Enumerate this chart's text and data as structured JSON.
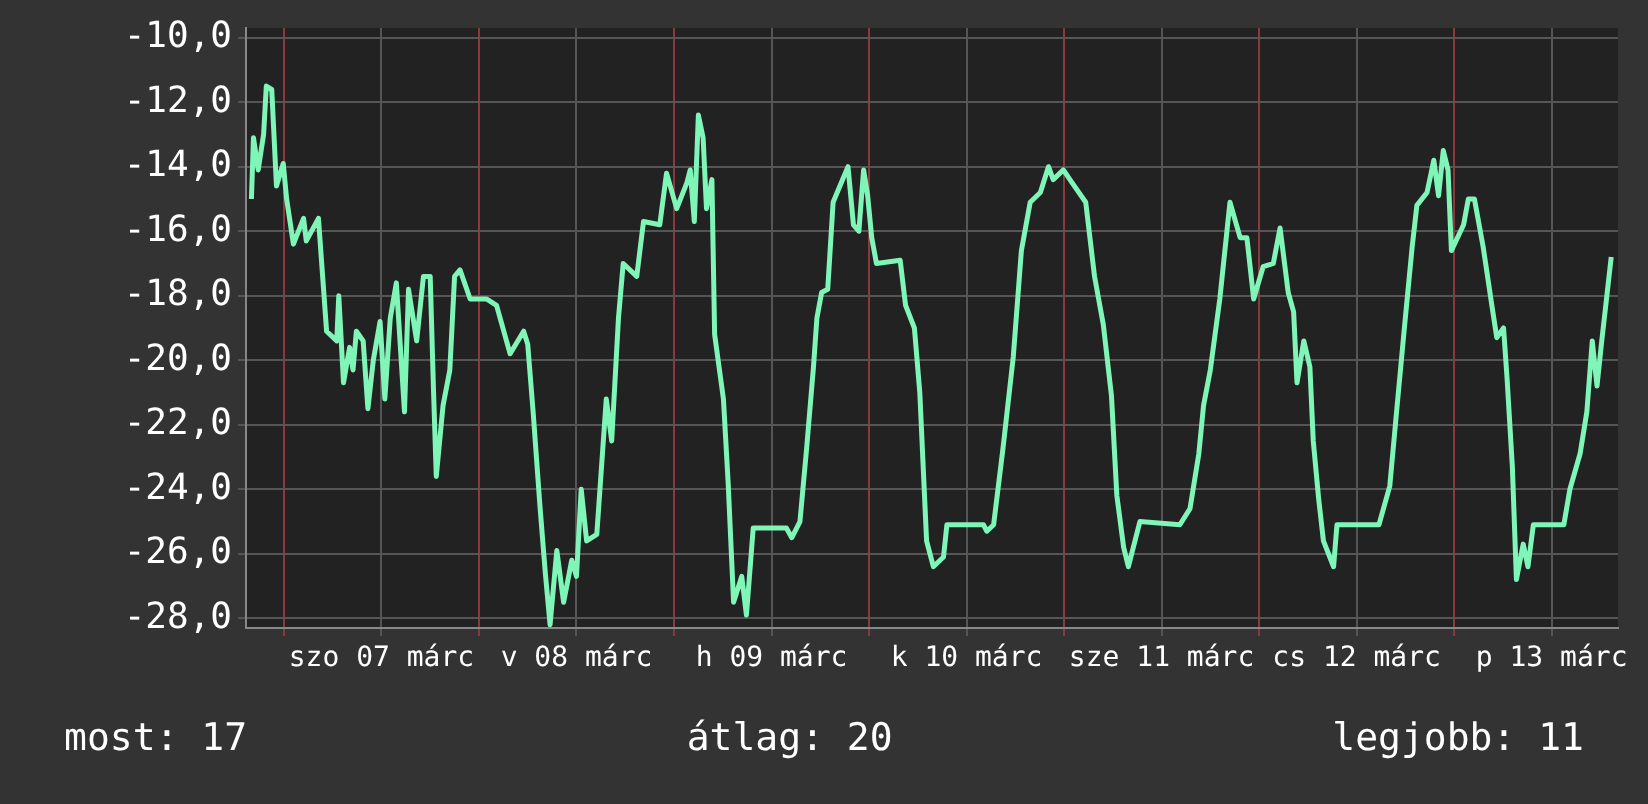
{
  "chart_data": {
    "type": "line",
    "xlim": [
      "--03-06T19:20",
      "--03-13T20:10"
    ],
    "ylim": [
      -28.3,
      -9.7
    ],
    "xticks": [
      {
        "value": "--03-07T00:00",
        "label": null
      },
      {
        "value": "--03-07T12:00",
        "label": "szo 07 márc"
      },
      {
        "value": "--03-08T00:00",
        "label": null
      },
      {
        "value": "--03-08T12:00",
        "label": "v 08 márc"
      },
      {
        "value": "--03-09T00:00",
        "label": null
      },
      {
        "value": "--03-09T12:00",
        "label": "h 09 márc"
      },
      {
        "value": "--03-10T00:00",
        "label": null
      },
      {
        "value": "--03-10T12:00",
        "label": "k 10 márc"
      },
      {
        "value": "--03-11T00:00",
        "label": null
      },
      {
        "value": "--03-11T12:00",
        "label": "sze 11 márc"
      },
      {
        "value": "--03-12T00:00",
        "label": null
      },
      {
        "value": "--03-12T12:00",
        "label": "cs 12 márc"
      },
      {
        "value": "--03-13T00:00",
        "label": null
      },
      {
        "value": "--03-13T12:00",
        "label": "p 13 márc"
      }
    ],
    "yticks": [
      {
        "value": -10,
        "label": "-10,0"
      },
      {
        "value": -12,
        "label": "-12,0"
      },
      {
        "value": -14,
        "label": "-14,0"
      },
      {
        "value": -16,
        "label": "-16,0"
      },
      {
        "value": -18,
        "label": "-18,0"
      },
      {
        "value": -20,
        "label": "-20,0"
      },
      {
        "value": -22,
        "label": "-22,0"
      },
      {
        "value": -24,
        "label": "-24,0"
      },
      {
        "value": -26,
        "label": "-26,0"
      },
      {
        "value": -28,
        "label": "-28,0"
      }
    ],
    "grid": true,
    "legend": false,
    "marker": "none",
    "line_style": "solid",
    "annotations": [
      "most: 17",
      "átlag: 20",
      "legjobb: 11"
    ],
    "series": [
      {
        "color": "#7ff5b8",
        "x": [
          "--03-06T20:00",
          "--03-06T20:15",
          "--03-06T20:50",
          "--03-06T21:30",
          "--03-06T21:50",
          "--03-06T22:30",
          "--03-06T23:05",
          "--03-06T23:55",
          "--03-07T00:20",
          "--03-07T01:10",
          "--03-07T02:25",
          "--03-07T02:45",
          "--03-07T04:15",
          "--03-07T05:15",
          "--03-07T06:30",
          "--03-07T06:45",
          "--03-07T07:20",
          "--03-07T08:05",
          "--03-07T08:30",
          "--03-07T08:55",
          "--03-07T09:45",
          "--03-07T10:20",
          "--03-07T11:00",
          "--03-07T11:50",
          "--03-07T12:25",
          "--03-07T13:05",
          "--03-07T13:50",
          "--03-07T14:50",
          "--03-07T15:20",
          "--03-07T16:20",
          "--03-07T17:10",
          "--03-07T18:00",
          "--03-07T18:25",
          "--03-07T18:45",
          "--03-07T19:35",
          "--03-07T20:25",
          "--03-07T21:00",
          "--03-07T21:40",
          "--03-07T22:55",
          "--03-08T00:55",
          "--03-08T02:10",
          "--03-08T03:50",
          "--03-08T05:30",
          "--03-08T06:00",
          "--03-08T06:40",
          "--03-08T07:30",
          "--03-08T08:10",
          "--03-08T08:45",
          "--03-08T09:35",
          "--03-08T10:25",
          "--03-08T11:25",
          "--03-08T12:00",
          "--03-08T12:35",
          "--03-08T13:15",
          "--03-08T14:30",
          "--03-08T15:40",
          "--03-08T16:20",
          "--03-08T17:10",
          "--03-08T17:45",
          "--03-08T19:25",
          "--03-08T20:15",
          "--03-08T22:15",
          "--03-08T23:05",
          "--03-09T00:20",
          "--03-09T01:35",
          "--03-09T02:00",
          "--03-09T02:30",
          "--03-09T03:00",
          "--03-09T03:35",
          "--03-09T04:00",
          "--03-09T04:40",
          "--03-09T05:00",
          "--03-09T06:05",
          "--03-09T06:40",
          "--03-09T07:20",
          "--03-09T08:20",
          "--03-09T08:55",
          "--03-09T09:45",
          "--03-09T13:50",
          "--03-09T14:30",
          "--03-09T15:30",
          "--03-09T16:20",
          "--03-09T17:10",
          "--03-09T17:35",
          "--03-09T18:10",
          "--03-09T18:55",
          "--03-09T19:35",
          "--03-09T20:25",
          "--03-09T21:25",
          "--03-09T22:05",
          "--03-09T22:45",
          "--03-09T23:20",
          "--03-09T23:50",
          "--03-10T00:20",
          "--03-10T00:55",
          "--03-10T03:50",
          "--03-10T04:30",
          "--03-10T05:35",
          "--03-10T06:15",
          "--03-10T07:05",
          "--03-10T07:55",
          "--03-10T09:10",
          "--03-10T09:35",
          "--03-10T14:05",
          "--03-10T14:30",
          "--03-10T15:20",
          "--03-10T16:30",
          "--03-10T17:45",
          "--03-10T18:45",
          "--03-10T19:50",
          "--03-10T21:05",
          "--03-10T22:05",
          "--03-10T22:40",
          "--03-10T23:55",
          "--03-11T01:00",
          "--03-11T02:40",
          "--03-11T03:45",
          "--03-11T04:50",
          "--03-11T05:50",
          "--03-11T06:30",
          "--03-11T07:20",
          "--03-11T07:55",
          "--03-11T09:20",
          "--03-11T14:15",
          "--03-11T15:30",
          "--03-11T16:35",
          "--03-11T17:10",
          "--03-11T18:00",
          "--03-11T19:10",
          "--03-11T20:00",
          "--03-11T20:25",
          "--03-11T21:40",
          "--03-11T22:30",
          "--03-11T23:20",
          "--03-12T00:30",
          "--03-12T01:45",
          "--03-12T02:35",
          "--03-12T03:35",
          "--03-12T04:15",
          "--03-12T04:40",
          "--03-12T05:30",
          "--03-12T06:15",
          "--03-12T06:40",
          "--03-12T07:20",
          "--03-12T07:55",
          "--03-12T09:10",
          "--03-12T09:35",
          "--03-12T14:45",
          "--03-12T16:05",
          "--03-12T16:55",
          "--03-12T17:55",
          "--03-12T18:50",
          "--03-12T19:25",
          "--03-12T20:40",
          "--03-12T21:30",
          "--03-12T22:05",
          "--03-12T22:40",
          "--03-12T23:15",
          "--03-12T23:40",
          "--03-13T01:10",
          "--03-13T01:45",
          "--03-13T02:30",
          "--03-13T03:35",
          "--03-13T04:35",
          "--03-13T05:15",
          "--03-13T06:05",
          "--03-13T06:30",
          "--03-13T07:10",
          "--03-13T07:40",
          "--03-13T08:30",
          "--03-13T09:05",
          "--03-13T09:45",
          "--03-13T13:30",
          "--03-13T14:15",
          "--03-13T15:30",
          "--03-13T16:20",
          "--03-13T17:00",
          "--03-13T17:35",
          "--03-13T18:10",
          "--03-13T18:45",
          "--03-13T19:20"
        ],
        "values": [
          -15.0,
          -13.1,
          -14.1,
          -13.0,
          -11.5,
          -11.6,
          -14.6,
          -13.9,
          -15.0,
          -16.4,
          -15.6,
          -16.3,
          -15.6,
          -19.1,
          -19.4,
          -18.0,
          -20.7,
          -19.6,
          -20.3,
          -19.1,
          -19.4,
          -21.5,
          -20.0,
          -18.8,
          -21.2,
          -18.7,
          -17.6,
          -21.6,
          -17.8,
          -19.4,
          -17.4,
          -17.4,
          -21.0,
          -23.6,
          -21.4,
          -20.3,
          -17.4,
          -17.2,
          -18.1,
          -18.1,
          -18.3,
          -19.8,
          -19.1,
          -19.5,
          -21.6,
          -24.5,
          -26.6,
          -28.2,
          -25.9,
          -27.5,
          -26.2,
          -26.7,
          -24.0,
          -25.6,
          -25.4,
          -21.2,
          -22.5,
          -18.7,
          -17.0,
          -17.4,
          -15.7,
          -15.8,
          -14.2,
          -15.3,
          -14.5,
          -14.1,
          -15.7,
          -12.4,
          -13.1,
          -15.3,
          -14.4,
          -19.2,
          -21.2,
          -23.8,
          -27.5,
          -26.7,
          -27.9,
          -25.2,
          -25.2,
          -25.5,
          -25.0,
          -22.7,
          -20.2,
          -18.7,
          -17.9,
          -17.8,
          -15.1,
          -14.6,
          -14.0,
          -15.8,
          -16.0,
          -14.1,
          -14.9,
          -16.2,
          -17.0,
          -16.9,
          -18.3,
          -19.0,
          -21.0,
          -25.6,
          -26.4,
          -26.1,
          -25.1,
          -25.1,
          -25.3,
          -25.1,
          -22.7,
          -19.9,
          -16.6,
          -15.1,
          -14.8,
          -14.0,
          -14.4,
          -14.1,
          -14.5,
          -15.1,
          -17.4,
          -18.9,
          -21.1,
          -24.2,
          -25.8,
          -26.4,
          -25.0,
          -25.1,
          -24.6,
          -22.9,
          -21.4,
          -20.3,
          -18.1,
          -16.1,
          -15.1,
          -16.2,
          -16.2,
          -18.1,
          -17.1,
          -17.0,
          -15.9,
          -17.9,
          -18.5,
          -20.7,
          -19.4,
          -20.2,
          -22.5,
          -24.3,
          -25.6,
          -26.4,
          -25.1,
          -25.1,
          -23.9,
          -21.6,
          -18.9,
          -16.5,
          -15.2,
          -14.8,
          -13.8,
          -14.9,
          -13.5,
          -14.1,
          -16.6,
          -15.8,
          -15.0,
          -15.0,
          -16.5,
          -18.2,
          -19.3,
          -19.0,
          -20.5,
          -23.3,
          -26.8,
          -25.7,
          -26.4,
          -25.1,
          -25.1,
          -24.0,
          -22.9,
          -21.6,
          -19.4,
          -20.8,
          -19.4,
          -18.1,
          -16.8
        ]
      }
    ]
  }
}
